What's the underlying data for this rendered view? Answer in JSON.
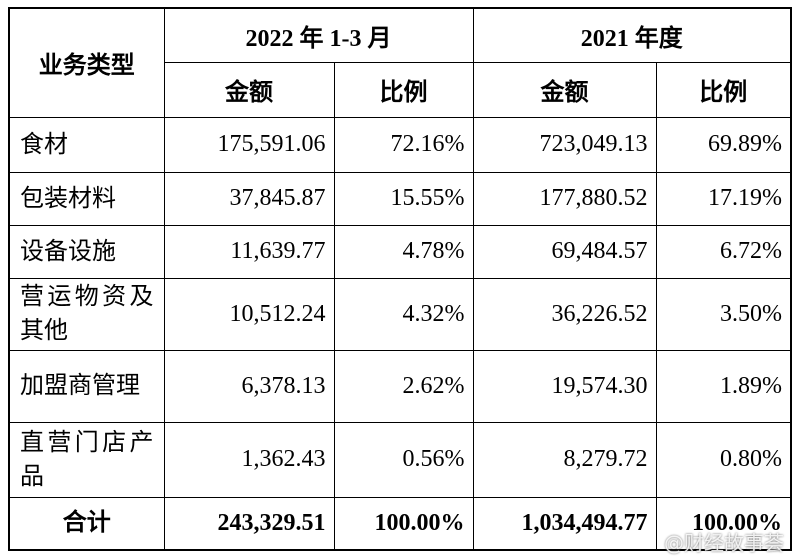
{
  "table": {
    "header": {
      "category": "业务类型",
      "groups": [
        "2022 年 1-3 月",
        "2021 年度"
      ],
      "subheaders": [
        "金额",
        "比例",
        "金额",
        "比例"
      ]
    },
    "rows": [
      [
        "食材",
        "175,591.06",
        "72.16%",
        "723,049.13",
        "69.89%"
      ],
      [
        "包装材料",
        "37,845.87",
        "15.55%",
        "177,880.52",
        "17.19%"
      ],
      [
        "设备设施",
        "11,639.77",
        "4.78%",
        "69,484.57",
        "6.72%"
      ],
      [
        "营运物资及其他",
        "10,512.24",
        "4.32%",
        "36,226.52",
        "3.50%"
      ],
      [
        "加盟商管理",
        "6,378.13",
        "2.62%",
        "19,574.30",
        "1.89%"
      ],
      [
        "直营门店产品",
        "1,362.43",
        "0.56%",
        "8,279.72",
        "0.80%"
      ]
    ],
    "total": [
      "合计",
      "243,329.51",
      "100.00%",
      "1,034,494.77",
      "100.00%"
    ]
  },
  "watermark": "@财经故事荟"
}
